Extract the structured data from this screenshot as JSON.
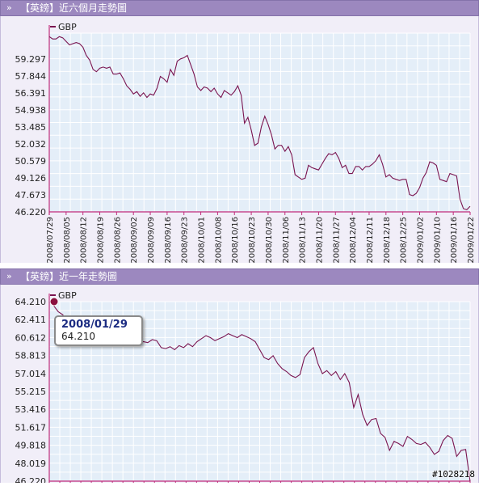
{
  "panels": [
    {
      "arrow": "»",
      "title": "【英鎊】近六個月走勢圖"
    },
    {
      "arrow": "»",
      "title": "【英鎊】近一年走勢圖"
    }
  ],
  "tooltip": {
    "date": "2008/01/29",
    "value": "64.210"
  },
  "watermark": "#1028218",
  "colors": {
    "header": "#9c88bf",
    "plot_bg": "#e4eef8",
    "grid": "#ffffff",
    "line": "#7a1450",
    "axis": "#c02c7c"
  },
  "chart_data": [
    {
      "type": "line",
      "series": [
        {
          "name": "GBP",
          "values": [
            61.2,
            61.0,
            61.0,
            61.2,
            61.1,
            60.8,
            60.5,
            60.6,
            60.7,
            60.6,
            60.3,
            59.6,
            59.2,
            58.4,
            58.2,
            58.5,
            58.6,
            58.5,
            58.6,
            58.0,
            58.0,
            58.1,
            57.6,
            57.0,
            56.7,
            56.3,
            56.5,
            56.1,
            56.4,
            56.0,
            56.3,
            56.2,
            56.8,
            57.8,
            57.6,
            57.3,
            58.4,
            57.9,
            59.1,
            59.3,
            59.4,
            59.6,
            58.8,
            58.0,
            56.9,
            56.6,
            56.9,
            56.8,
            56.5,
            56.8,
            56.3,
            56.0,
            56.6,
            56.4,
            56.2,
            56.5,
            57.0,
            56.2,
            53.8,
            54.3,
            53.2,
            51.9,
            52.1,
            53.5,
            54.4,
            53.7,
            52.8,
            51.6,
            51.9,
            51.9,
            51.4,
            51.8,
            51.1,
            49.4,
            49.2,
            49.0,
            49.1,
            50.2,
            50.0,
            49.9,
            49.8,
            50.3,
            50.8,
            51.2,
            51.1,
            51.3,
            50.8,
            50.0,
            50.2,
            49.5,
            49.5,
            50.1,
            50.1,
            49.8,
            50.1,
            50.1,
            50.3,
            50.6,
            51.1,
            50.3,
            49.2,
            49.4,
            49.1,
            49.0,
            48.9,
            49.0,
            49.0,
            47.7,
            47.6,
            47.8,
            48.3,
            49.1,
            49.6,
            50.5,
            50.4,
            50.2,
            49.0,
            48.9,
            48.8,
            49.5,
            49.4,
            49.3,
            47.3,
            46.5,
            46.4,
            46.7
          ]
        }
      ],
      "xlabels": [
        "2008/07/29",
        "2008/08/05",
        "2008/08/12",
        "2008/08/19",
        "2008/08/26",
        "2008/09/02",
        "2008/09/09",
        "2008/09/16",
        "2008/09/23",
        "2008/10/01",
        "2008/10/08",
        "2008/10/16",
        "2008/10/23",
        "2008/10/30",
        "2008/11/06",
        "2008/11/13",
        "2008/11/20",
        "2008/11/27",
        "2008/12/04",
        "2008/12/11",
        "2008/12/18",
        "2008/12/25",
        "2009/01/02",
        "2009/01/10",
        "2009/01/16",
        "2009/01/22"
      ],
      "yticks": [
        "59.297",
        "57.844",
        "56.391",
        "54.938",
        "53.485",
        "52.032",
        "50.579",
        "49.126",
        "47.673",
        "46.220"
      ],
      "ylim": [
        46.22,
        61.5
      ],
      "legend_position": "top-left",
      "grid": true
    },
    {
      "type": "line",
      "series": [
        {
          "name": "GBP",
          "values": [
            64.21,
            63.8,
            63.2,
            62.9,
            62.3,
            61.8,
            61.3,
            61.0,
            60.7,
            60.5,
            60.4,
            60.2,
            60.0,
            60.1,
            60.3,
            60.2,
            60.4,
            59.9,
            60.1,
            60.3,
            60.0,
            60.2,
            60.1,
            60.4,
            60.3,
            59.6,
            59.5,
            59.7,
            59.4,
            59.8,
            59.6,
            60.0,
            59.7,
            60.2,
            60.5,
            60.8,
            60.6,
            60.3,
            60.5,
            60.7,
            61.0,
            60.8,
            60.6,
            60.9,
            60.7,
            60.5,
            60.2,
            59.4,
            58.6,
            58.4,
            58.8,
            58.0,
            57.5,
            57.2,
            56.8,
            56.6,
            56.9,
            58.6,
            59.2,
            59.6,
            58.0,
            57.0,
            57.3,
            56.8,
            57.2,
            56.4,
            57.0,
            56.1,
            53.6,
            54.9,
            52.9,
            51.8,
            52.4,
            52.5,
            51.0,
            50.6,
            49.3,
            50.2,
            50.0,
            49.7,
            50.7,
            50.4,
            50.0,
            49.9,
            50.1,
            49.6,
            48.9,
            49.2,
            50.3,
            50.8,
            50.5,
            48.7,
            49.3,
            49.4,
            46.2
          ]
        }
      ],
      "yticks": [
        "64.210",
        "62.411",
        "60.612",
        "58.813",
        "57.014",
        "55.215",
        "53.416",
        "51.617",
        "49.818",
        "48.019",
        "46.220"
      ],
      "ylim": [
        46.22,
        64.21
      ],
      "legend_position": "top-left",
      "grid": true
    }
  ]
}
